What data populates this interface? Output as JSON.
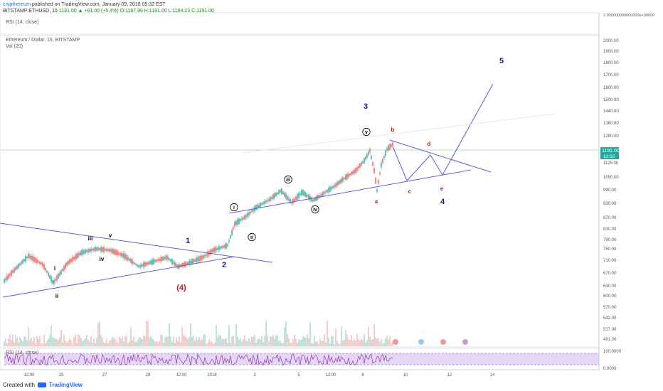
{
  "header": {
    "author": "crypthereum",
    "published": "published on TradingView.com, January 09, 2018 05:32 EST",
    "symbol": "BITSTAMP:ETHUSD, 15",
    "last": "1191.00",
    "change": "▲ +61.00 (+5.4%)",
    "ohlc": "O:1187.96 H:1191.00 L:1184.23 C:1191.00"
  },
  "rsi_pane": {
    "label": "RSI (14, close)",
    "top_label": "2.000000000000000e+00000"
  },
  "main_pane": {
    "title": "Ethereum / Dollar, 15, BITSTAMP",
    "vol_label": "Vol (20)",
    "last_price_tag": "1191.00",
    "countdown_tag": "12:52"
  },
  "lower_rsi": {
    "label": "RSI (14, close)",
    "y_labels": [
      "100.0000",
      "0.0000"
    ]
  },
  "footer": {
    "created_with": "Created with",
    "brand": "TradingView"
  },
  "chart_data": {
    "type": "line",
    "title": "Ethereum / Dollar, 15, BITSTAMP",
    "y_axis_labels": [
      2000,
      1900,
      1800,
      1700,
      1600,
      1500,
      1440,
      1360,
      1280,
      1125,
      1050,
      990,
      930,
      870,
      830,
      790,
      750,
      710,
      670,
      630,
      600,
      570,
      542,
      517,
      491
    ],
    "x_axis_labels": [
      "12:00",
      "25",
      "27",
      "29",
      "12:00",
      "2018",
      "3",
      "5",
      "12:00",
      "8",
      "10",
      "12",
      "14"
    ],
    "wave_labels": [
      {
        "text": "i",
        "color": "#000000"
      },
      {
        "text": "ii",
        "color": "#000000"
      },
      {
        "text": "iii",
        "color": "#000000"
      },
      {
        "text": "iv",
        "color": "#000000"
      },
      {
        "text": "v",
        "color": "#000000"
      },
      {
        "text": "1",
        "color": "#1a237e"
      },
      {
        "text": "2",
        "color": "#1a237e"
      },
      {
        "text": "(4)",
        "color": "#b71c1c"
      },
      {
        "text": "i",
        "color": "#000000"
      },
      {
        "text": "ii",
        "color": "#000000"
      },
      {
        "text": "iii",
        "color": "#000000"
      },
      {
        "text": "iv",
        "color": "#000000"
      },
      {
        "text": "v",
        "color": "#000000"
      },
      {
        "text": "3",
        "color": "#1a237e"
      },
      {
        "text": "4",
        "color": "#1a237e"
      },
      {
        "text": "5",
        "color": "#1a237e"
      },
      {
        "text": "a",
        "color": "#b71c1c"
      },
      {
        "text": "b",
        "color": "#b71c1c"
      },
      {
        "text": "c",
        "color": "#b71c1c"
      },
      {
        "text": "d",
        "color": "#b71c1c"
      },
      {
        "text": "e",
        "color": "#b71c1c"
      }
    ],
    "colors": {
      "up": "#26a69a",
      "down": "#ef5350",
      "trend": "#5c5cd6",
      "rsi": "#7b1fa2",
      "rsi_band": "#e6d5f5"
    }
  }
}
